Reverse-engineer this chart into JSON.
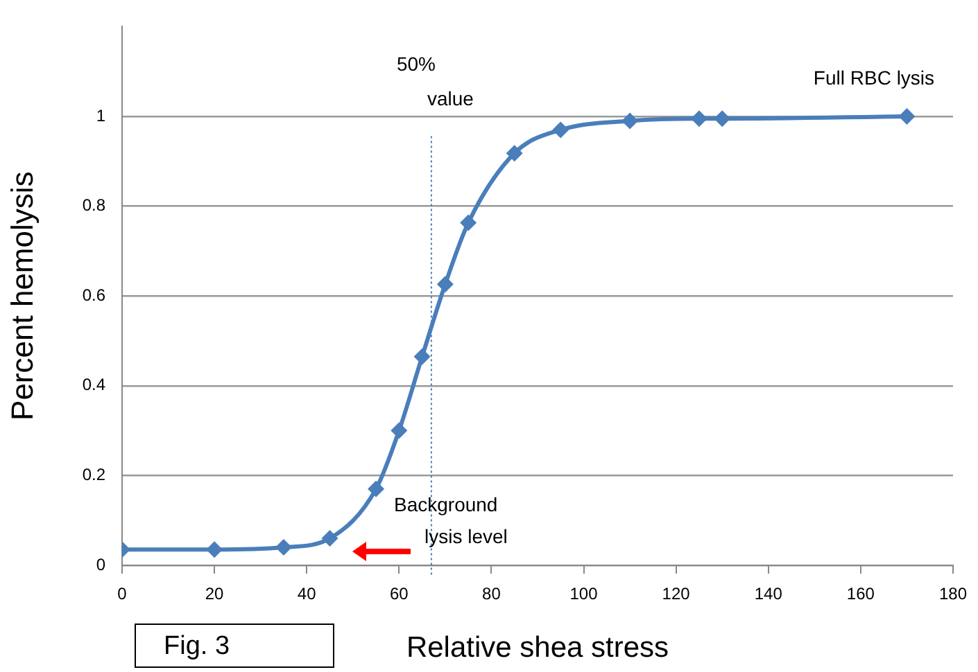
{
  "chart_data": {
    "type": "line",
    "xlabel": "Relative shea stress",
    "ylabel": "Percent hemolysis",
    "x": [
      0,
      20,
      35,
      45,
      55,
      60,
      65,
      70,
      75,
      85,
      95,
      110,
      125,
      130,
      170
    ],
    "series": [
      {
        "color": "#4a7ebb",
        "values": [
          0.035,
          0.035,
          0.04,
          0.06,
          0.17,
          0.3,
          0.465,
          0.626,
          0.763,
          0.918,
          0.97,
          0.99,
          0.995,
          0.995,
          1.0
        ]
      }
    ],
    "xlim": [
      0,
      180
    ],
    "xticks": [
      0,
      20,
      40,
      60,
      80,
      100,
      120,
      140,
      160,
      180
    ],
    "ylim": [
      0,
      1.2
    ],
    "yticks": [
      0,
      0.2,
      0.4,
      0.6,
      0.8,
      1
    ],
    "grid": "y",
    "marker": "diamond",
    "line_style": "solid",
    "legend": false,
    "ref_lines": [
      {
        "axis": "x",
        "value": 67,
        "label": "50% value",
        "color": "#4a7ebb",
        "line_style": "dotted"
      }
    ],
    "annotations": [
      "Full RBC lysis",
      "Background lysis level",
      "Fig. 3"
    ]
  }
}
